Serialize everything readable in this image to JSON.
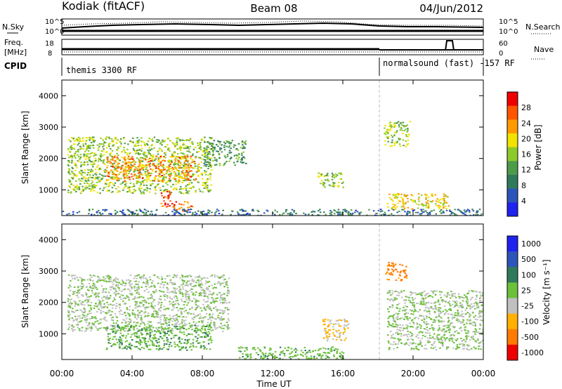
{
  "header": {
    "station": "Kodiak (fitACF)",
    "beam": "Beam 08",
    "date": "04/Jun/2012"
  },
  "top_panels": {
    "nsky_label": "N.Sky",
    "nsearch_label": "N.Search",
    "freq_label_1": "Freq.",
    "freq_label_2": "[MHz]",
    "nave_label": "Nave",
    "cpid_label": "CPID",
    "count_ticks": [
      "10^5",
      "10^0"
    ],
    "freq_ticks": [
      "18",
      "8"
    ],
    "nave_ticks": [
      "60",
      "0"
    ],
    "cpid_segments": [
      {
        "label": "themis 3300 RF",
        "start_hour": 0,
        "end_hour": 18
      },
      {
        "label": "normalsound (fast) -157 RF",
        "start_hour": 18,
        "end_hour": 24
      }
    ]
  },
  "chart_data": [
    {
      "type": "heatmap",
      "title": "",
      "xlabel": "",
      "ylabel": "Slant Range [km]",
      "xlim": [
        0,
        24
      ],
      "ylim": [
        180,
        4500
      ],
      "x_ticks": [
        "00:00",
        "04:00",
        "08:00",
        "12:00",
        "16:00",
        "20:00",
        "00:00"
      ],
      "y_ticks": [
        "1000",
        "2000",
        "3000",
        "4000"
      ],
      "colorbar": {
        "label": "Power [dB]",
        "range": [
          0,
          32
        ],
        "ticks": [
          "4",
          "8",
          "12",
          "16",
          "20",
          "24",
          "28"
        ],
        "colors": [
          "#1e22ee",
          "#2d55b9",
          "#2f7a5b",
          "#4e9b4a",
          "#8ccb2a",
          "#f2e200",
          "#ff9a00",
          "#ff5500",
          "#ee0000"
        ]
      },
      "regions": [
        {
          "t0": 0.3,
          "t1": 8.5,
          "r0": 900,
          "r1": 2700,
          "value": 16
        },
        {
          "t0": 2.5,
          "t1": 7.8,
          "r0": 1300,
          "r1": 2100,
          "value": 24
        },
        {
          "t0": 5.6,
          "t1": 6.2,
          "r0": 450,
          "r1": 1000,
          "value": 28
        },
        {
          "t0": 6.2,
          "t1": 7.4,
          "r0": 350,
          "r1": 650,
          "value": 26
        },
        {
          "t0": 8.0,
          "t1": 10.5,
          "r0": 1800,
          "r1": 2600,
          "value": 12
        },
        {
          "t0": 14.5,
          "t1": 16.0,
          "r0": 1100,
          "r1": 1600,
          "value": 16
        },
        {
          "t0": 18.3,
          "t1": 19.8,
          "r0": 2400,
          "r1": 3200,
          "value": 16
        },
        {
          "t0": 18.5,
          "t1": 22.0,
          "r0": 400,
          "r1": 900,
          "value": 20
        },
        {
          "t0": 0.0,
          "t1": 24.0,
          "r0": 180,
          "r1": 400,
          "value": 8
        }
      ]
    },
    {
      "type": "heatmap",
      "title": "",
      "xlabel": "Time UT",
      "ylabel": "Slant Range [km]",
      "xlim": [
        0,
        24
      ],
      "ylim": [
        180,
        4500
      ],
      "x_ticks": [
        "00:00",
        "04:00",
        "08:00",
        "12:00",
        "16:00",
        "20:00",
        "00:00"
      ],
      "y_ticks": [
        "1000",
        "2000",
        "3000",
        "4000"
      ],
      "colorbar": {
        "label": "Velocity [m s⁻¹]",
        "range": [
          -1000,
          1000
        ],
        "ticks": [
          "1000",
          "500",
          "100",
          "25",
          "-25",
          "-100",
          "-500",
          "-1000"
        ],
        "colors": [
          "#1e22ee",
          "#2d55b9",
          "#2f7a5b",
          "#6cc03a",
          "#c0c0c0",
          "#ffb000",
          "#ff7a00",
          "#ee0000"
        ]
      },
      "regions": [
        {
          "t0": 0.3,
          "t1": 9.5,
          "r0": 1100,
          "r1": 2900,
          "value": 0
        },
        {
          "t0": 2.5,
          "t1": 8.5,
          "r0": 500,
          "r1": 1300,
          "value": 200
        },
        {
          "t0": 10.0,
          "t1": 16.0,
          "r0": 180,
          "r1": 600,
          "value": 150
        },
        {
          "t0": 14.8,
          "t1": 16.3,
          "r0": 800,
          "r1": 1500,
          "value": -300
        },
        {
          "t0": 18.4,
          "t1": 19.6,
          "r0": 2700,
          "r1": 3300,
          "value": -600
        },
        {
          "t0": 18.5,
          "t1": 24.0,
          "r0": 500,
          "r1": 2400,
          "value": 0
        }
      ]
    }
  ]
}
